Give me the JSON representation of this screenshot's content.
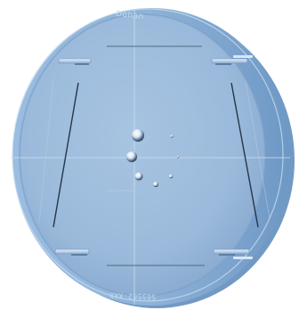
{
  "window": {
    "top_engraving": "Dohan",
    "bottom_engraving": "S65S62-XXX"
  },
  "colors": {
    "rim_outer": "#7fa6cf",
    "rim_edge": "#9bbde0",
    "rim_highlight": "#c7dcf0",
    "face": "#9dbcdc",
    "face_shadow": "#87a9cd",
    "crosshair": "#c8dcf0",
    "frame_line": "#24364a"
  },
  "icons": {
    "bubble": "water-droplet-icon",
    "clamp": "mounting-clamp-icon"
  }
}
